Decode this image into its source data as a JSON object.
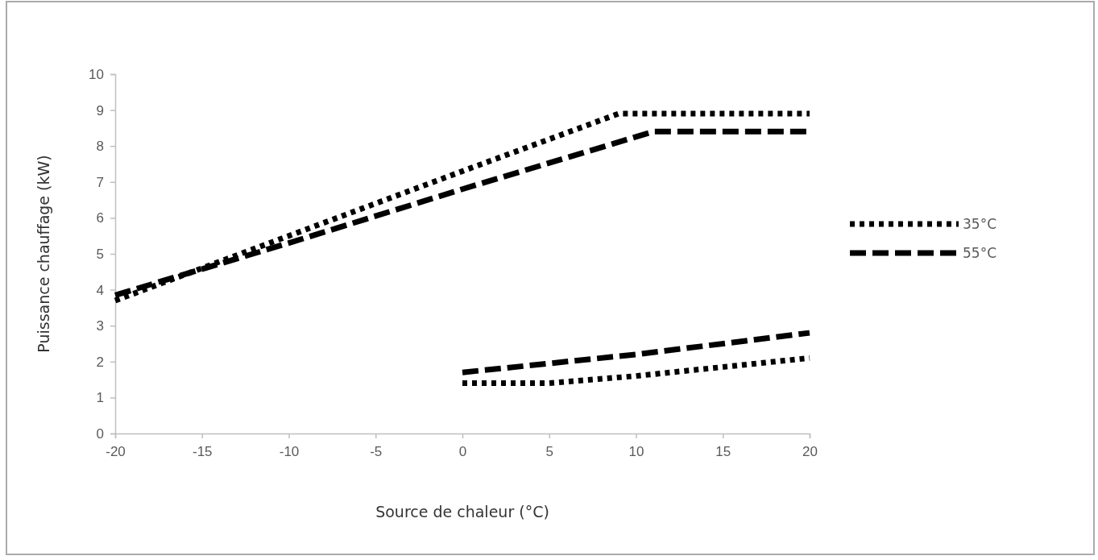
{
  "chart_data": {
    "type": "line",
    "xlabel": "Source de chaleur (°C)",
    "ylabel": "Puissance chauffage (kW)",
    "xlim": [
      -20,
      20
    ],
    "xticks": [
      -20,
      -15,
      -10,
      -5,
      0,
      5,
      10,
      15,
      20
    ],
    "ylim": [
      0,
      10
    ],
    "yticks": [
      0,
      1,
      2,
      3,
      4,
      5,
      6,
      7,
      8,
      9,
      10
    ],
    "grid": false,
    "legend": "right",
    "marker": "none",
    "series": [
      {
        "name": "35°C",
        "color": "#000000",
        "line_style": "dotted",
        "x": [
          -20,
          -10,
          0,
          9,
          20
        ],
        "values": [
          3.7,
          5.5,
          7.3,
          8.9,
          8.9
        ]
      },
      {
        "name": "55°C",
        "color": "#000000",
        "line_style": "dashed",
        "x": [
          -20,
          -10,
          0,
          11,
          20
        ],
        "values": [
          3.85,
          5.3,
          6.8,
          8.4,
          8.4
        ]
      },
      {
        "color": "#000000",
        "line_style": "dotted",
        "x": [
          0,
          5,
          10,
          20
        ],
        "values": [
          1.4,
          1.4,
          1.6,
          2.1
        ]
      },
      {
        "color": "#000000",
        "line_style": "dashed",
        "x": [
          0,
          5,
          10,
          20
        ],
        "values": [
          1.7,
          1.95,
          2.2,
          2.8
        ]
      }
    ]
  }
}
